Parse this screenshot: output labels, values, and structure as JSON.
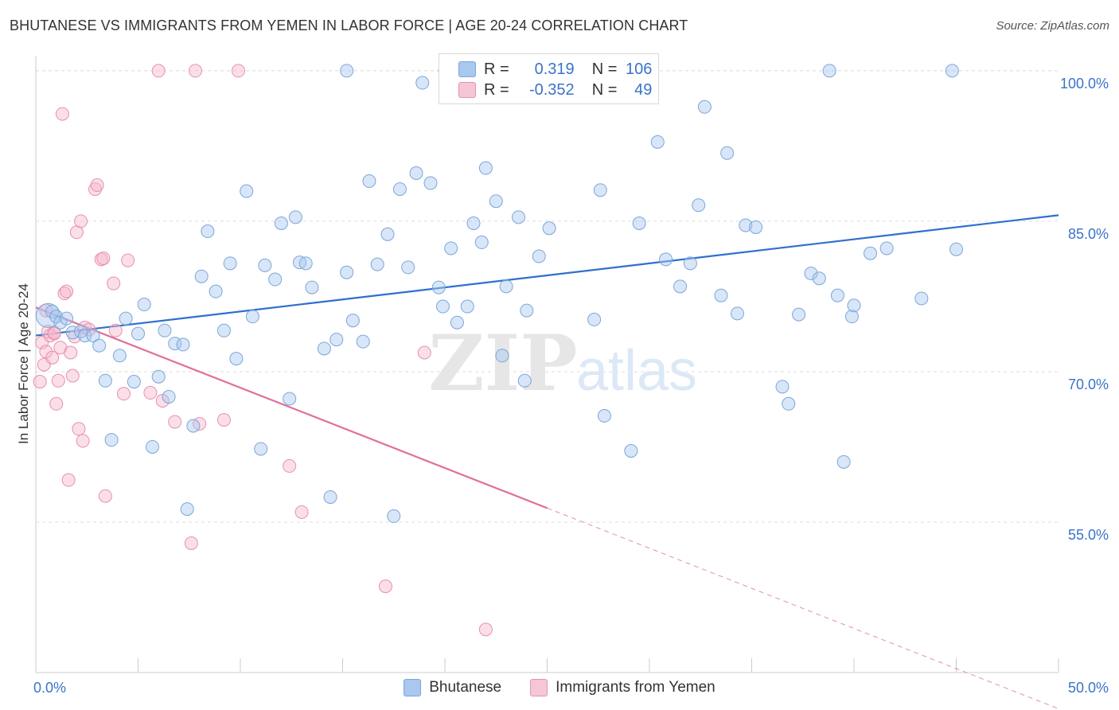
{
  "header": {
    "title": "BHUTANESE VS IMMIGRANTS FROM YEMEN IN LABOR FORCE | AGE 20-24 CORRELATION CHART",
    "source": "Source: ZipAtlas.com"
  },
  "legend_box": {
    "rows": [
      {
        "r_label": "R =",
        "r_value": "0.319",
        "n_label": "N =",
        "n_value": "106"
      },
      {
        "r_label": "R =",
        "r_value": "-0.352",
        "n_label": "N =",
        "n_value": "49"
      }
    ]
  },
  "bottom_legend": {
    "items": [
      "Bhutanese",
      "Immigrants from Yemen"
    ]
  },
  "watermark": {
    "zip": "ZIP",
    "atlas": "atlas"
  },
  "colors": {
    "blue_fill": "#a8c8f0",
    "blue_stroke": "#7aa6dc",
    "blue_line": "#2f6fcf",
    "pink_fill": "#f5b8cc",
    "pink_stroke": "#e890ad",
    "pink_line": "#e0709a",
    "tick_label": "#3a73c8"
  },
  "chart_data": {
    "type": "scatter",
    "title": "BHUTANESE VS IMMIGRANTS FROM YEMEN IN LABOR FORCE | AGE 20-24 CORRELATION CHART",
    "xlabel": "",
    "ylabel": "In Labor Force | Age 20-24",
    "xlim": [
      0,
      50
    ],
    "ylim": [
      40,
      101.5
    ],
    "x_tick_labels": [
      "0.0%",
      "50.0%"
    ],
    "y_ticks": [
      55,
      70,
      85,
      100
    ],
    "y_tick_labels": [
      "55.0%",
      "70.0%",
      "85.0%",
      "100.0%"
    ],
    "grid": true,
    "series": [
      {
        "name": "Bhutanese",
        "R": 0.319,
        "N": 106,
        "trend": {
          "x": [
            0,
            50
          ],
          "y": [
            73.6,
            85.6
          ],
          "solid_until": 50
        },
        "points": [
          [
            0.6,
            75.6
          ],
          [
            0.8,
            76.0
          ],
          [
            1.0,
            75.5
          ],
          [
            1.2,
            74.9
          ],
          [
            1.5,
            75.3
          ],
          [
            1.8,
            73.9
          ],
          [
            2.2,
            74.0
          ],
          [
            2.4,
            73.6
          ],
          [
            2.8,
            73.6
          ],
          [
            3.1,
            72.6
          ],
          [
            3.4,
            69.1
          ],
          [
            3.7,
            63.2
          ],
          [
            4.1,
            71.6
          ],
          [
            4.4,
            75.3
          ],
          [
            4.8,
            69.0
          ],
          [
            5.0,
            73.8
          ],
          [
            5.3,
            76.7
          ],
          [
            5.7,
            62.5
          ],
          [
            6.0,
            69.5
          ],
          [
            6.3,
            74.1
          ],
          [
            6.5,
            67.5
          ],
          [
            6.8,
            72.8
          ],
          [
            7.2,
            72.7
          ],
          [
            7.4,
            56.3
          ],
          [
            7.7,
            64.6
          ],
          [
            8.1,
            79.5
          ],
          [
            8.4,
            84.0
          ],
          [
            8.8,
            78.0
          ],
          [
            9.2,
            74.1
          ],
          [
            9.5,
            80.8
          ],
          [
            9.8,
            71.3
          ],
          [
            10.3,
            88.0
          ],
          [
            10.6,
            75.5
          ],
          [
            11.0,
            62.3
          ],
          [
            11.2,
            80.6
          ],
          [
            11.7,
            79.2
          ],
          [
            12.0,
            84.8
          ],
          [
            12.4,
            67.3
          ],
          [
            12.7,
            85.4
          ],
          [
            12.9,
            80.9
          ],
          [
            13.2,
            80.8
          ],
          [
            13.5,
            78.4
          ],
          [
            14.1,
            72.3
          ],
          [
            14.4,
            57.5
          ],
          [
            14.7,
            73.2
          ],
          [
            15.2,
            79.9
          ],
          [
            15.5,
            75.1
          ],
          [
            16.0,
            73.0
          ],
          [
            16.3,
            89.0
          ],
          [
            16.7,
            80.7
          ],
          [
            17.2,
            83.7
          ],
          [
            17.5,
            55.6
          ],
          [
            17.8,
            88.2
          ],
          [
            18.2,
            80.4
          ],
          [
            18.6,
            89.8
          ],
          [
            18.9,
            98.8
          ],
          [
            19.3,
            88.8
          ],
          [
            19.7,
            78.4
          ],
          [
            19.9,
            76.5
          ],
          [
            20.3,
            82.3
          ],
          [
            20.6,
            74.9
          ],
          [
            21.1,
            76.5
          ],
          [
            21.4,
            84.8
          ],
          [
            21.8,
            82.9
          ],
          [
            22.0,
            90.3
          ],
          [
            22.5,
            87.0
          ],
          [
            22.8,
            71.6
          ],
          [
            23.0,
            78.5
          ],
          [
            23.6,
            85.4
          ],
          [
            23.9,
            69.1
          ],
          [
            24.0,
            76.1
          ],
          [
            24.6,
            81.5
          ],
          [
            25.1,
            84.3
          ],
          [
            27.3,
            75.2
          ],
          [
            27.6,
            88.1
          ],
          [
            27.8,
            65.6
          ],
          [
            29.1,
            62.1
          ],
          [
            29.5,
            84.8
          ],
          [
            30.4,
            92.9
          ],
          [
            30.8,
            81.2
          ],
          [
            31.5,
            78.5
          ],
          [
            32.0,
            80.8
          ],
          [
            32.4,
            86.6
          ],
          [
            32.7,
            96.4
          ],
          [
            33.5,
            77.6
          ],
          [
            33.8,
            91.8
          ],
          [
            34.3,
            75.8
          ],
          [
            34.7,
            84.6
          ],
          [
            35.2,
            84.4
          ],
          [
            36.5,
            68.5
          ],
          [
            36.8,
            66.8
          ],
          [
            37.3,
            75.7
          ],
          [
            37.9,
            79.8
          ],
          [
            38.3,
            79.3
          ],
          [
            38.8,
            100.0
          ],
          [
            39.2,
            77.6
          ],
          [
            39.5,
            61.0
          ],
          [
            39.9,
            75.5
          ],
          [
            40.0,
            76.6
          ],
          [
            40.8,
            81.8
          ],
          [
            41.6,
            82.3
          ],
          [
            43.3,
            77.3
          ],
          [
            44.8,
            100.0
          ],
          [
            45.0,
            82.2
          ],
          [
            15.2,
            100.0
          ],
          [
            20.0,
            100.0
          ]
        ]
      },
      {
        "name": "Immigrants from Yemen",
        "R": -0.352,
        "N": 49,
        "trend": {
          "x": [
            0,
            50
          ],
          "y": [
            76.4,
            36.4
          ],
          "solid_until": 25
        },
        "points": [
          [
            0.2,
            69.0
          ],
          [
            0.3,
            72.9
          ],
          [
            0.4,
            70.7
          ],
          [
            0.5,
            72.0
          ],
          [
            0.6,
            74.0
          ],
          [
            0.7,
            73.6
          ],
          [
            0.8,
            71.4
          ],
          [
            0.9,
            73.9
          ],
          [
            1.0,
            66.8
          ],
          [
            1.1,
            69.1
          ],
          [
            1.2,
            72.4
          ],
          [
            1.3,
            95.7
          ],
          [
            1.4,
            77.8
          ],
          [
            1.5,
            78.0
          ],
          [
            1.6,
            59.2
          ],
          [
            1.7,
            71.9
          ],
          [
            1.8,
            69.6
          ],
          [
            1.9,
            73.5
          ],
          [
            2.0,
            83.9
          ],
          [
            2.1,
            64.3
          ],
          [
            2.2,
            85.0
          ],
          [
            2.3,
            63.1
          ],
          [
            2.4,
            74.4
          ],
          [
            2.9,
            88.2
          ],
          [
            3.0,
            88.6
          ],
          [
            3.2,
            81.2
          ],
          [
            3.3,
            81.3
          ],
          [
            3.4,
            57.6
          ],
          [
            3.8,
            78.8
          ],
          [
            3.9,
            74.1
          ],
          [
            4.3,
            67.8
          ],
          [
            4.5,
            81.1
          ],
          [
            5.6,
            67.9
          ],
          [
            6.0,
            100.0
          ],
          [
            6.2,
            67.1
          ],
          [
            6.8,
            65.0
          ],
          [
            7.6,
            52.9
          ],
          [
            7.8,
            100.0
          ],
          [
            8.0,
            64.8
          ],
          [
            9.2,
            65.2
          ],
          [
            9.9,
            100.0
          ],
          [
            12.4,
            60.6
          ],
          [
            13.0,
            56.0
          ],
          [
            17.1,
            48.6
          ],
          [
            19.0,
            71.9
          ],
          [
            22.0,
            44.3
          ],
          [
            0.5,
            76.1
          ],
          [
            0.9,
            73.8
          ],
          [
            2.6,
            74.2
          ]
        ]
      }
    ],
    "legend_position": "top-center"
  }
}
